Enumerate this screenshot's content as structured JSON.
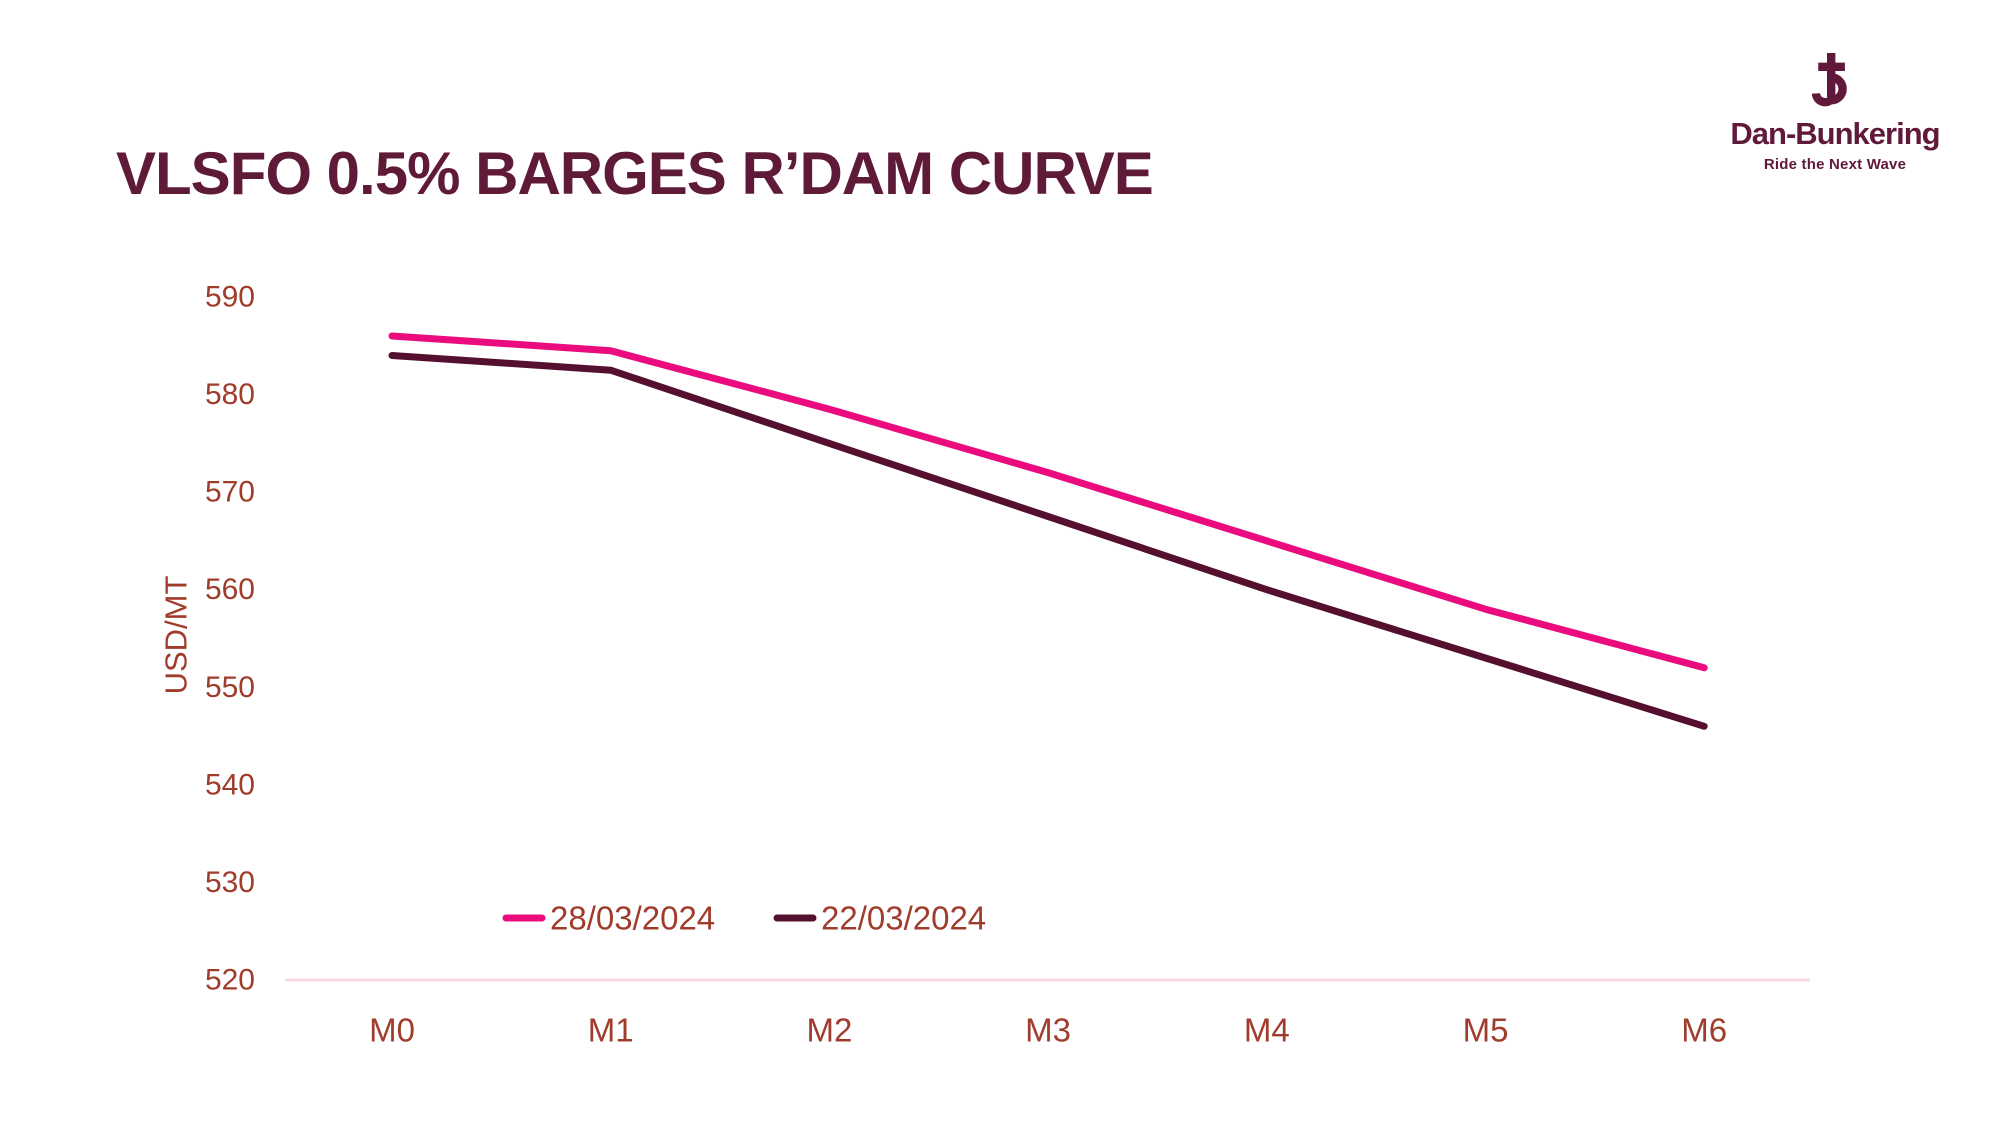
{
  "header": {
    "title": "VLSFO 0.5% BARGES R’DAM CURVE"
  },
  "logo": {
    "brand": "Dan-Bunkering",
    "tagline": "Ride the Next Wave",
    "icon": "anchor-b-icon"
  },
  "chart_data": {
    "type": "line",
    "title": "VLSFO 0.5% BARGES R’DAM CURVE",
    "categories": [
      "M0",
      "M1",
      "M2",
      "M3",
      "M4",
      "M5",
      "M6"
    ],
    "series": [
      {
        "name": "28/03/2024",
        "color": "#EA0C7E",
        "values": [
          586,
          584.5,
          578.5,
          572,
          565,
          558,
          552
        ]
      },
      {
        "name": "22/03/2024",
        "color": "#551030",
        "values": [
          584,
          582.5,
          575,
          567.5,
          560,
          553,
          546
        ]
      }
    ],
    "xlabel": "",
    "ylabel": "USD/MT",
    "ylim": [
      520,
      590
    ],
    "yticks": [
      520,
      530,
      540,
      550,
      560,
      570,
      580,
      590
    ],
    "grid": false,
    "legend_position": "bottom"
  },
  "colors": {
    "title": "#5E1A37",
    "axis_text": "#A03C2B",
    "axis_line": "#F9D7E6",
    "logo": "#61193B",
    "background": "#FFFFFF"
  }
}
